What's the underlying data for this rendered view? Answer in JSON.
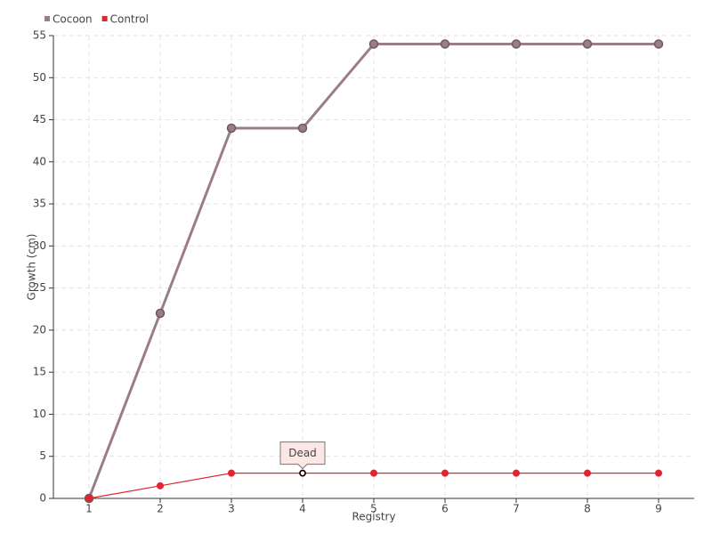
{
  "chart_data": {
    "type": "line",
    "xlabel": "Registry",
    "ylabel": "Growth (cm)",
    "x": [
      1,
      2,
      3,
      4,
      5,
      6,
      7,
      8,
      9
    ],
    "series": [
      {
        "name": "Cocoon",
        "color": "#9b7d84",
        "values": [
          0,
          22,
          44,
          44,
          54,
          54,
          54,
          54,
          54
        ]
      },
      {
        "name": "Control",
        "color": "#e0252f",
        "values": [
          0,
          1.5,
          3,
          3,
          3,
          3,
          3,
          3,
          3
        ]
      }
    ],
    "xlim": [
      0.5,
      9.5
    ],
    "xticks": [
      1,
      2,
      3,
      4,
      5,
      6,
      7,
      8,
      9
    ],
    "ylim": [
      0,
      55
    ],
    "yticks": [
      0,
      5,
      10,
      15,
      20,
      25,
      30,
      35,
      40,
      45,
      50,
      55
    ],
    "grid": true,
    "legend": "top-left",
    "annotations": [
      {
        "text": "Dead",
        "x": 4,
        "y": 3
      }
    ]
  }
}
